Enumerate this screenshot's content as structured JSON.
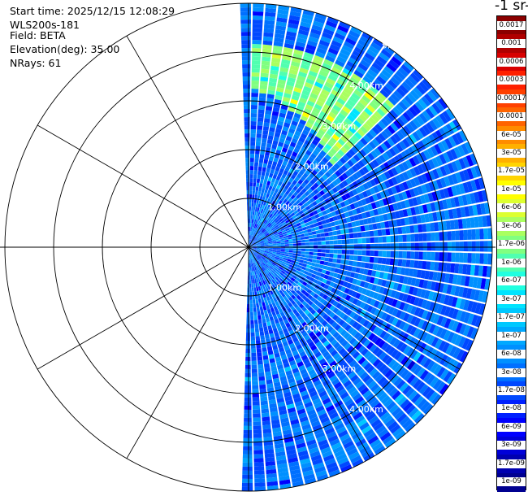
{
  "info": {
    "start_time": "Start time: 2025/12/15 12:08:29",
    "instrument": "WLS200s-181",
    "field": "Field: BETA",
    "elevation": "Elevation(deg): 35.00",
    "nrays": "NRays: 61"
  },
  "colorbar": {
    "unit_label": "-1 sr-",
    "labels": [
      "0.0017",
      "0.001",
      "0.0006",
      "0.0003",
      "0.00017",
      "0.0001",
      "6e-05",
      "3e-05",
      "1.7e-05",
      "1e-05",
      "6e-06",
      "3e-06",
      "1.7e-06",
      "1e-06",
      "6e-07",
      "3e-07",
      "1.7e-07",
      "1e-07",
      "6e-08",
      "3e-08",
      "1.7e-08",
      "1e-08",
      "6e-09",
      "3e-09",
      "1.7e-09",
      "1e-09"
    ],
    "colors": [
      "#8b0000",
      "#b00000",
      "#d80000",
      "#ff2000",
      "#ff4000",
      "#ff6400",
      "#ff8c00",
      "#ffb000",
      "#ffd400",
      "#ffff00",
      "#ddff30",
      "#aaff60",
      "#80ff80",
      "#50ffb0",
      "#20ffe0",
      "#00e4ff",
      "#00c8ff",
      "#00a8ff",
      "#0090ff",
      "#0070ff",
      "#0048ff",
      "#0020ff",
      "#0000ff",
      "#0000d8",
      "#0000b0",
      "#000090"
    ]
  },
  "chart_data": {
    "type": "heatmap",
    "projection": "polar PPI",
    "title": "",
    "range_rings_labels": [
      "1.00km",
      "2.00km",
      "3.00km",
      "4.00km",
      "5.00km"
    ],
    "extra_ring_label": "5.0",
    "range_ring_km": [
      1,
      2,
      3,
      4,
      5
    ],
    "max_range_km": 5.0,
    "sector_azimuth_deg": [
      -2,
      182
    ],
    "n_rays": 61,
    "scale": "log",
    "value_range": [
      1e-09,
      0.0017
    ],
    "enhanced_feature": {
      "description_azimuth_deg": [
        10,
        45
      ],
      "range_km": [
        3.1,
        4.0
      ],
      "approx_value": 1.7e-06
    },
    "typical_value": 3e-08
  }
}
